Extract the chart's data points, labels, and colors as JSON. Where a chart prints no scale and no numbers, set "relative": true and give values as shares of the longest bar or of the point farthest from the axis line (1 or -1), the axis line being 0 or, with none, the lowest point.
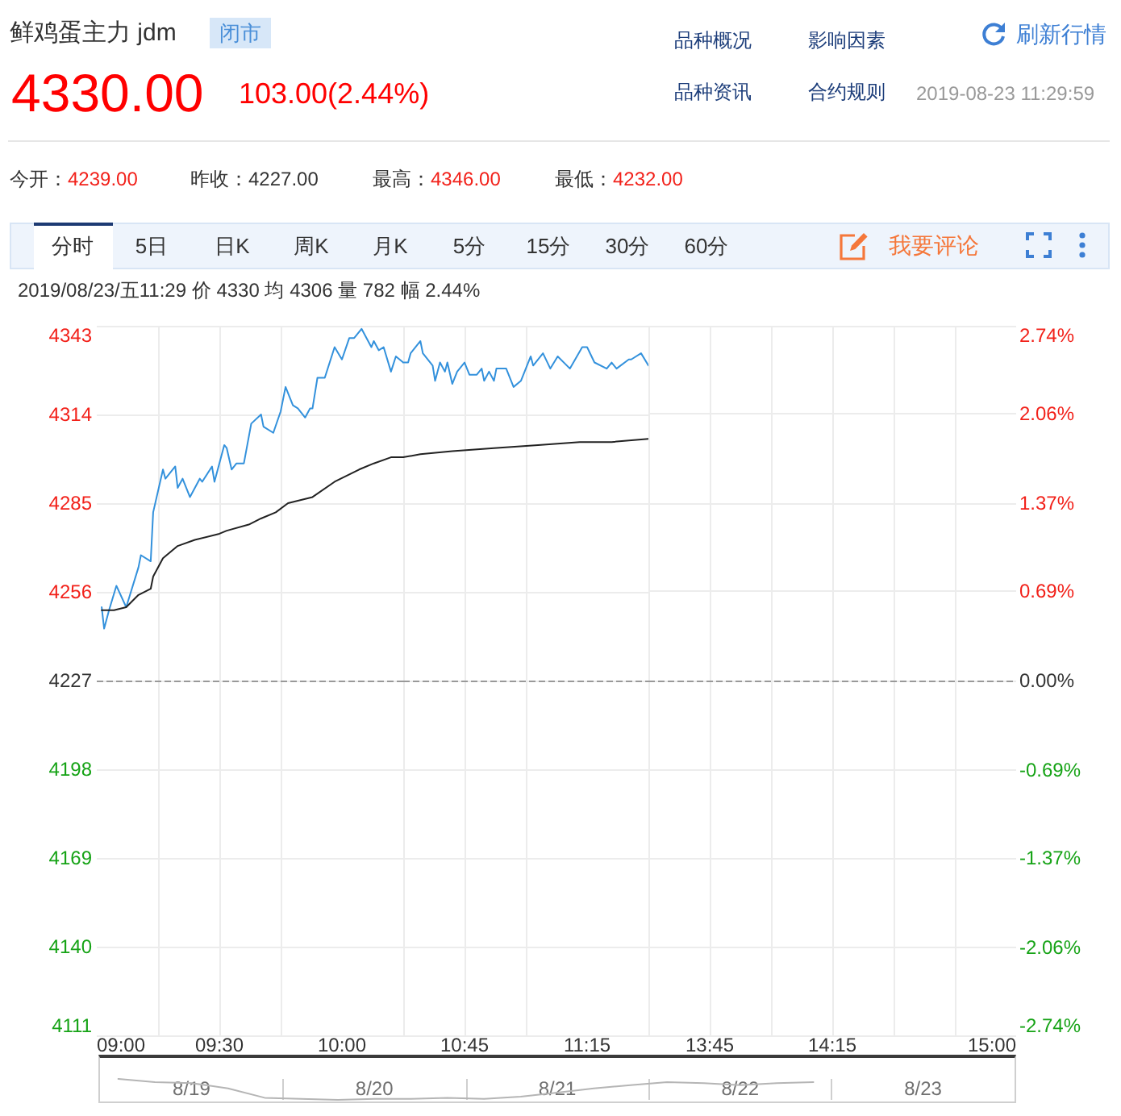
{
  "chart_data": [
    {
      "type": "line",
      "title": "鲜鸡蛋主力 jdm",
      "annotations": [
        "闭市",
        "4330.00",
        "103.00(2.44%)",
        "品种概况",
        "影响因素",
        "品种资讯",
        "合约规则",
        "刷新行情",
        "2019-08-23 11:29:59",
        "今开：4239.00",
        "昨收：4227.00",
        "最高：4346.00",
        "最低：4232.00",
        "分时",
        "5日",
        "日K",
        "周K",
        "月K",
        "5分",
        "15分",
        "30分",
        "60分",
        "我要评论",
        "2019/08/23/五11:29 价 4330 均 4306 量 782 幅 2.44%"
      ],
      "xlim": [
        9,
        10.25
      ],
      "xticks": [
        {
          "value": 9,
          "label": "09:00"
        },
        {
          "value": 9.25,
          "label": null
        },
        {
          "value": 9.5,
          "label": "09:30"
        },
        {
          "value": 9.75,
          "label": null
        },
        {
          "value": 10,
          "label": "10:00"
        }
      ],
      "ylim": [
        4111,
        4343
      ],
      "yticks": [
        4111,
        4140,
        4169,
        4198,
        4227,
        4256,
        4285,
        4314,
        4343
      ],
      "grid": true,
      "marker": "none",
      "line_style": "solid",
      "ref_lines": [
        {
          "axis": "y",
          "value": 4227,
          "color": "#999999",
          "line_style": "dashed"
        }
      ],
      "series": [
        {
          "color": "#3391dc",
          "x": [
            9.02,
            9.03,
            9.05,
            9.08,
            9.12,
            9.17,
            9.18,
            9.22,
            9.23,
            9.27,
            9.28,
            9.32,
            9.33,
            9.35,
            9.38,
            9.42,
            9.43,
            9.47,
            9.48,
            9.52,
            9.53,
            9.55,
            9.57,
            9.6,
            9.63,
            9.67,
            9.68,
            9.72,
            9.75,
            9.77,
            9.8,
            9.82,
            9.85,
            9.87,
            9.88,
            9.9,
            9.93,
            9.97,
            10,
            10.03,
            10.05,
            10.08,
            10.12,
            10.13,
            10.15,
            10.17,
            10.2,
            10.22,
            10.25
          ],
          "values": [
            4251,
            4244,
            4250,
            4258,
            4251,
            4264,
            4268,
            4266,
            4282,
            4296,
            4293,
            4297,
            4290,
            4293,
            4287,
            4293,
            4292,
            4297,
            4292,
            4304,
            4303,
            4296,
            4298,
            4298,
            4311,
            4314,
            4310,
            4308,
            4315,
            4323,
            4317,
            4316,
            4313,
            4316,
            4316,
            4326,
            4326,
            4336,
            4332,
            4339,
            4339,
            4342,
            4336,
            4338,
            4335,
            4336,
            4328,
            4333,
            4331
          ]
        },
        {
          "color": "#222222",
          "x": [
            9.02,
            9.07,
            9.12,
            9.17,
            9.22,
            9.23,
            9.27,
            9.33,
            9.4,
            9.5,
            9.53,
            9.62,
            9.67,
            9.73,
            9.78,
            9.88,
            9.97,
            10.07,
            10.13,
            10.2,
            10.25
          ],
          "values": [
            4250,
            4250,
            4251,
            4255,
            4257,
            4261,
            4267,
            4271,
            4273,
            4275,
            4276,
            4278,
            4280,
            4282,
            4285,
            4287,
            4292,
            4296,
            4298,
            4300,
            4300
          ]
        }
      ]
    },
    {
      "type": "line",
      "tick_labels": "x",
      "xlim": [
        10.5,
        11.5
      ],
      "xticks": [
        {
          "value": 10.5,
          "label": null
        },
        {
          "value": 10.75,
          "label": "10:45"
        },
        {
          "value": 11,
          "label": null
        },
        {
          "value": 11.25,
          "label": "11:15"
        }
      ],
      "ylim": [
        4111,
        4343
      ],
      "yticks": [
        4111,
        4140,
        4169,
        4198,
        4227,
        4256,
        4285,
        4314,
        4343
      ],
      "grid": true,
      "marker": "none",
      "line_style": "solid",
      "ref_lines": [
        {
          "axis": "y",
          "value": 4227,
          "color": "#999999",
          "line_style": "dashed"
        }
      ],
      "series": [
        {
          "color": "#3391dc",
          "x": [
            10.5,
            10.52,
            10.53,
            10.57,
            10.58,
            10.62,
            10.63,
            10.65,
            10.67,
            10.68,
            10.7,
            10.72,
            10.75,
            10.77,
            10.8,
            10.82,
            10.83,
            10.85,
            10.87,
            10.88,
            10.92,
            10.95,
            10.98,
            11.02,
            11.03,
            11.07,
            11.1,
            11.13,
            11.18,
            11.23,
            11.25,
            11.28,
            11.33,
            11.35,
            11.37,
            11.42,
            11.43,
            11.47,
            11.5
          ],
          "values": [
            4331,
            4331,
            4334,
            4338,
            4334,
            4330,
            4325,
            4331,
            4328,
            4331,
            4324,
            4328,
            4331,
            4327,
            4327,
            4329,
            4325,
            4328,
            4325,
            4329,
            4329,
            4323,
            4325,
            4333,
            4330,
            4334,
            4329,
            4333,
            4329,
            4336,
            4336,
            4331,
            4329,
            4331,
            4329,
            4332,
            4332,
            4334,
            4330
          ]
        },
        {
          "color": "#222222",
          "x": [
            10.5,
            10.57,
            10.7,
            10.87,
            11.05,
            11.22,
            11.35,
            11.5
          ],
          "values": [
            4300,
            4301,
            4302,
            4303,
            4304,
            4305,
            4305,
            4306
          ]
        }
      ]
    },
    {
      "type": "line",
      "xlim": [
        13.5,
        15
      ],
      "xticks": [
        {
          "value": 13.5,
          "label": null
        },
        {
          "value": 13.75,
          "label": "13:45"
        },
        {
          "value": 14,
          "label": null
        },
        {
          "value": 14.25,
          "label": "14:15"
        },
        {
          "value": 14.5,
          "label": null
        },
        {
          "value": 14.75,
          "label": null
        },
        {
          "value": 15,
          "label": "15:00"
        }
      ],
      "ylim": [
        -2.74,
        2.74
      ],
      "yticks": [
        {
          "value": -2.74,
          "label": "-2.74%"
        },
        {
          "value": -2.06,
          "label": "-2.06%"
        },
        {
          "value": -1.37,
          "label": "-1.37%"
        },
        {
          "value": -0.69,
          "label": "-0.69%"
        },
        {
          "value": 0,
          "label": "0.00%"
        },
        {
          "value": 0.69,
          "label": "0.69%"
        },
        {
          "value": 1.37,
          "label": "1.37%"
        },
        {
          "value": 2.06,
          "label": "2.06%"
        },
        {
          "value": 2.74,
          "label": "2.74%"
        }
      ],
      "grid": true,
      "ref_lines": [
        {
          "axis": "y",
          "value": 0,
          "color": "#999999",
          "line_style": "dashed"
        }
      ]
    },
    {
      "type": "line",
      "relative": true,
      "grid": "x",
      "marker": "none",
      "line_style": "solid",
      "categories": [
        null,
        null,
        "8/19",
        null,
        null,
        null,
        null,
        "8/20",
        null,
        null,
        null,
        null,
        "8/21",
        null,
        null,
        null,
        null,
        "8/22",
        null,
        null,
        null,
        null,
        "8/23",
        null,
        null
      ],
      "series": [
        {
          "color": "#b5b5b5",
          "values": [
            1,
            0.85,
            0.8,
            0.55,
            0.1,
            0.05,
            0,
            0.05,
            0.05,
            0.1,
            0.05,
            0.15,
            0.35,
            0.55,
            0.7,
            0.85,
            0.8,
            0.7,
            0.8,
            0.85,
            null,
            null,
            null,
            null,
            null
          ]
        }
      ]
    }
  ]
}
